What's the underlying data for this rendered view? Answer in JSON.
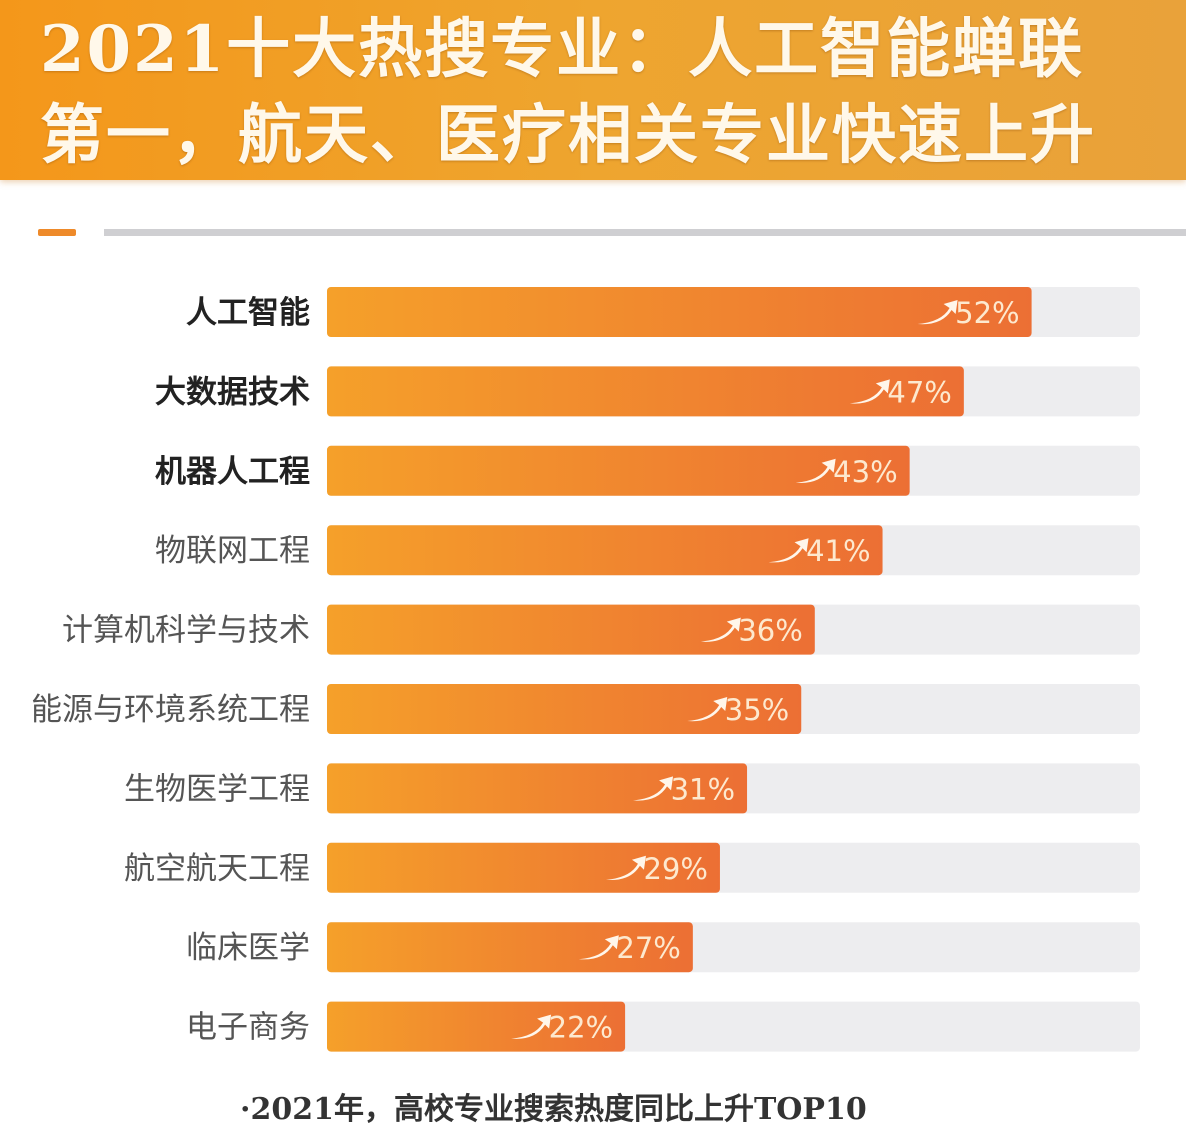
{
  "header": {
    "title_line1": "2021十大热搜专业：人工智能蝉联",
    "title_line2": "第一，航天、医疗相关专业快速上升"
  },
  "footer": {
    "note": "·2021年，高校专业搜索热度同比上升TOP10"
  },
  "colors": {
    "bar_start": "#f5a02a",
    "bar_end": "#ec6f34",
    "track": "#ededef",
    "header": "#f4971a"
  },
  "chart_data": {
    "type": "bar",
    "orientation": "horizontal",
    "categories": [
      "人工智能",
      "大数据技术",
      "机器人工程",
      "物联网工程",
      "计算机科学与技术",
      "能源与环境系统工程",
      "生物医学工程",
      "航空航天工程",
      "临床医学",
      "电子商务"
    ],
    "values": [
      52,
      47,
      43,
      41,
      36,
      35,
      31,
      29,
      27,
      22
    ],
    "labels": [
      "52%",
      "47%",
      "43%",
      "41%",
      "36%",
      "35%",
      "31%",
      "29%",
      "27%",
      "22%"
    ],
    "bold_categories": [
      "人工智能",
      "大数据技术",
      "机器人工程"
    ],
    "xlim": [
      0,
      60
    ],
    "unit": "%",
    "icon": "trend-up-arrow-icon",
    "grid": false
  }
}
